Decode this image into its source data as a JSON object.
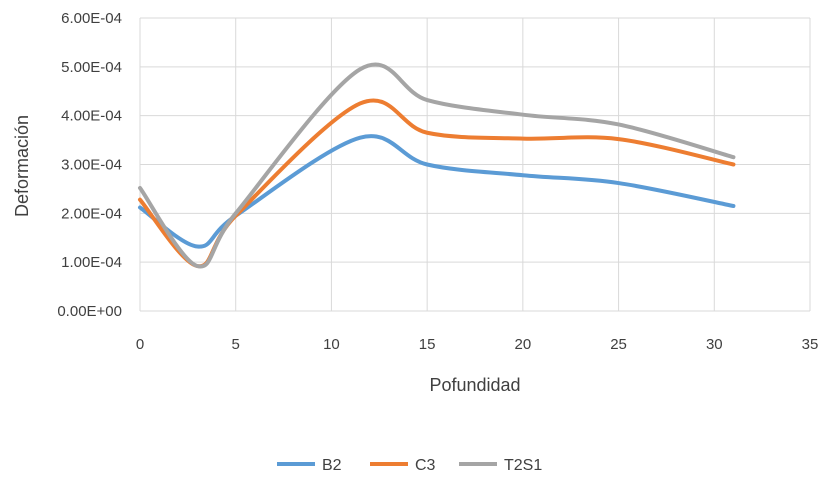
{
  "chart_data": {
    "type": "line",
    "title": "",
    "xlabel": "Pofundidad",
    "ylabel": "Deformación",
    "xlim": [
      0,
      35
    ],
    "ylim": [
      0,
      0.0006
    ],
    "x_ticks": [
      {
        "value": 0,
        "label": "0"
      },
      {
        "value": 5,
        "label": "5"
      },
      {
        "value": 10,
        "label": "10"
      },
      {
        "value": 15,
        "label": "15"
      },
      {
        "value": 20,
        "label": "20"
      },
      {
        "value": 25,
        "label": "25"
      },
      {
        "value": 30,
        "label": "30"
      },
      {
        "value": 35,
        "label": "35"
      }
    ],
    "y_ticks": [
      {
        "value": 0,
        "label": "0.00E+00"
      },
      {
        "value": 0.0001,
        "label": "1.00E-04"
      },
      {
        "value": 0.0002,
        "label": "2.00E-04"
      },
      {
        "value": 0.0003,
        "label": "3.00E-04"
      },
      {
        "value": 0.0004,
        "label": "4.00E-04"
      },
      {
        "value": 0.0005,
        "label": "5.00E-04"
      },
      {
        "value": 0.0006,
        "label": "6.00E-04"
      }
    ],
    "grid": true,
    "smooth": true,
    "legend_position": "bottom",
    "x": [
      0,
      3,
      5,
      11.5,
      15,
      20,
      25,
      31
    ],
    "series": [
      {
        "name": "B2",
        "color": "#5B9BD5",
        "values": [
          0.000212,
          0.000132,
          0.000195,
          0.000355,
          0.0003,
          0.000278,
          0.000262,
          0.000215
        ]
      },
      {
        "name": "C3",
        "color": "#ED7D31",
        "values": [
          0.000228,
          9.2e-05,
          0.000195,
          0.000425,
          0.000365,
          0.000353,
          0.000352,
          0.0003
        ]
      },
      {
        "name": "T2S1",
        "color": "#A5A5A5",
        "values": [
          0.000252,
          9.2e-05,
          0.0002,
          0.000495,
          0.000432,
          0.000402,
          0.000382,
          0.000315
        ]
      }
    ]
  }
}
